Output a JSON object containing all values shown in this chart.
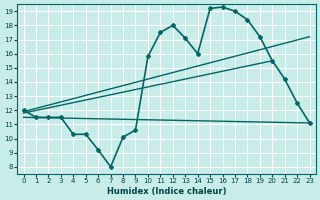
{
  "bg_color": "#c8ece8",
  "grid_color": "#b0d8d4",
  "line_color": "#006666",
  "xlabel": "Humidex (Indice chaleur)",
  "xlim": [
    -0.5,
    23.5
  ],
  "ylim": [
    7.5,
    19.5
  ],
  "yticks": [
    8,
    9,
    10,
    11,
    12,
    13,
    14,
    15,
    16,
    17,
    18,
    19
  ],
  "xticks": [
    0,
    1,
    2,
    3,
    4,
    5,
    6,
    7,
    8,
    9,
    10,
    11,
    12,
    13,
    14,
    15,
    16,
    17,
    18,
    19,
    20,
    21,
    22,
    23
  ],
  "series": [
    {
      "x": [
        0,
        1,
        2,
        3,
        4,
        5,
        6,
        7,
        8,
        9,
        10,
        11,
        12,
        13,
        14,
        15,
        16,
        17,
        18,
        19,
        20,
        21,
        22,
        23
      ],
      "y": [
        12,
        11.5,
        11.5,
        11.5,
        10.3,
        10.3,
        9.2,
        8.0,
        10.1,
        10.6,
        15.8,
        17.5,
        18.0,
        17.1,
        16.0,
        19.2,
        19.3,
        19.0,
        18.4,
        17.2,
        15.5,
        14.2,
        12.5,
        11.1
      ],
      "marker": "P",
      "markersize": 3,
      "linewidth": 1.2
    },
    {
      "x": [
        0,
        23
      ],
      "y": [
        11.9,
        17.2
      ],
      "marker": null,
      "linewidth": 1.0
    },
    {
      "x": [
        0,
        20
      ],
      "y": [
        11.8,
        15.5
      ],
      "marker": null,
      "linewidth": 1.0
    },
    {
      "x": [
        0,
        23
      ],
      "y": [
        11.5,
        11.1
      ],
      "marker": null,
      "linewidth": 1.0
    }
  ]
}
